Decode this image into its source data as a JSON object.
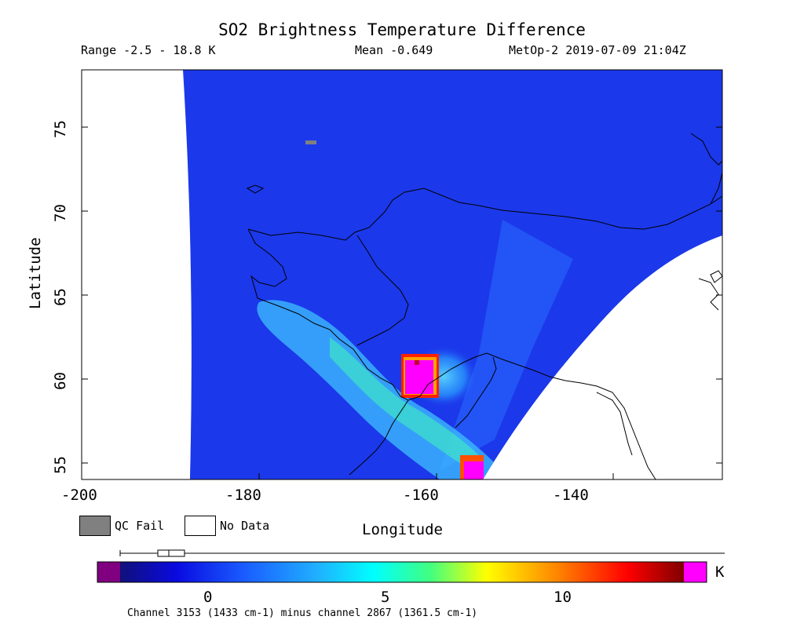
{
  "header": {
    "title": "SO2 Brightness Temperature Difference",
    "range": "Range -2.5 - 18.8 K",
    "mean": "Mean -0.649",
    "satellite_time": "MetOp-2 2019-07-09 21:04Z"
  },
  "axes": {
    "xlabel": "Longitude",
    "ylabel": "Latitude",
    "xticks": [
      "-200",
      "-180",
      "-160",
      "-140"
    ],
    "yticks": [
      "55",
      "60",
      "65",
      "70",
      "75"
    ],
    "xlim": [
      -200,
      -126
    ],
    "ylim": [
      54,
      78
    ]
  },
  "legend": {
    "qc_fail": "QC Fail",
    "no_data": "No Data",
    "qc_fail_color": "#808080",
    "no_data_color": "#ffffff"
  },
  "colorbar": {
    "ticks": [
      "0",
      "5",
      "10"
    ],
    "unit": "K",
    "range": [
      -2.5,
      13.5
    ],
    "under_color": "#800080",
    "over_color": "#ff00ff",
    "description": "Channel 3153 (1433 cm-1) minus channel 2867 (1361.5 cm-1)"
  },
  "map": {
    "background_color": "#1c3df0",
    "plume_color": "#3fc0ff",
    "hotspot_color": "#ff00ff",
    "hotspot_rim_color": "#ff2000"
  }
}
